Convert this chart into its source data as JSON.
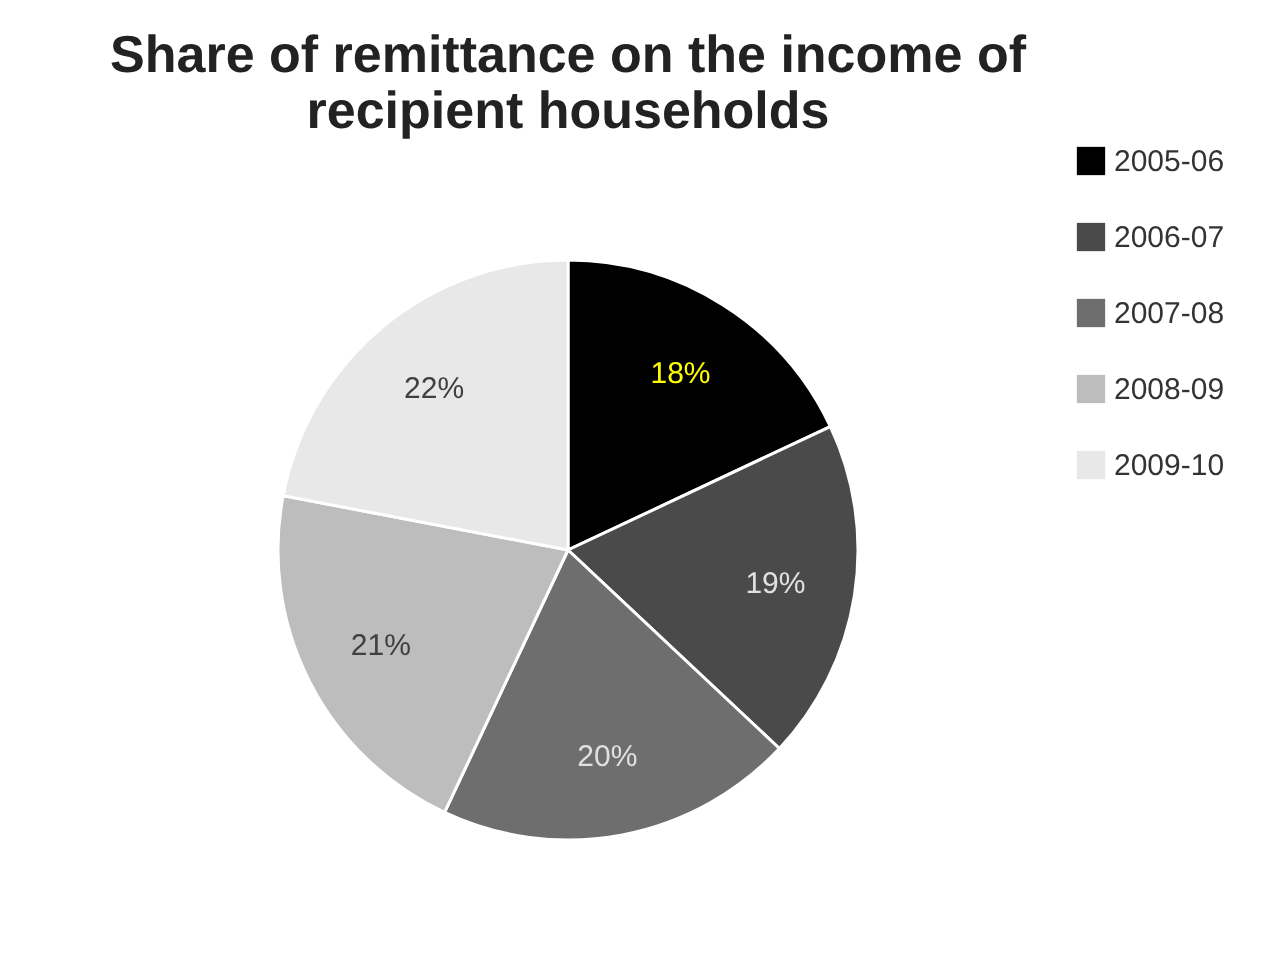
{
  "chart_data": {
    "type": "pie",
    "title": "Share of remittance on the income of recipient households",
    "categories": [
      "2005-06",
      "2006-07",
      "2007-08",
      "2008-09",
      "2009-10"
    ],
    "values": [
      18,
      19,
      20,
      21,
      22
    ],
    "colors": [
      "#000000",
      "#4a4a4a",
      "#6e6e6e",
      "#bdbdbd",
      "#e8e8e8"
    ],
    "value_labels": [
      "18%",
      "19%",
      "20%",
      "21%",
      "22%"
    ],
    "legend": "right"
  }
}
